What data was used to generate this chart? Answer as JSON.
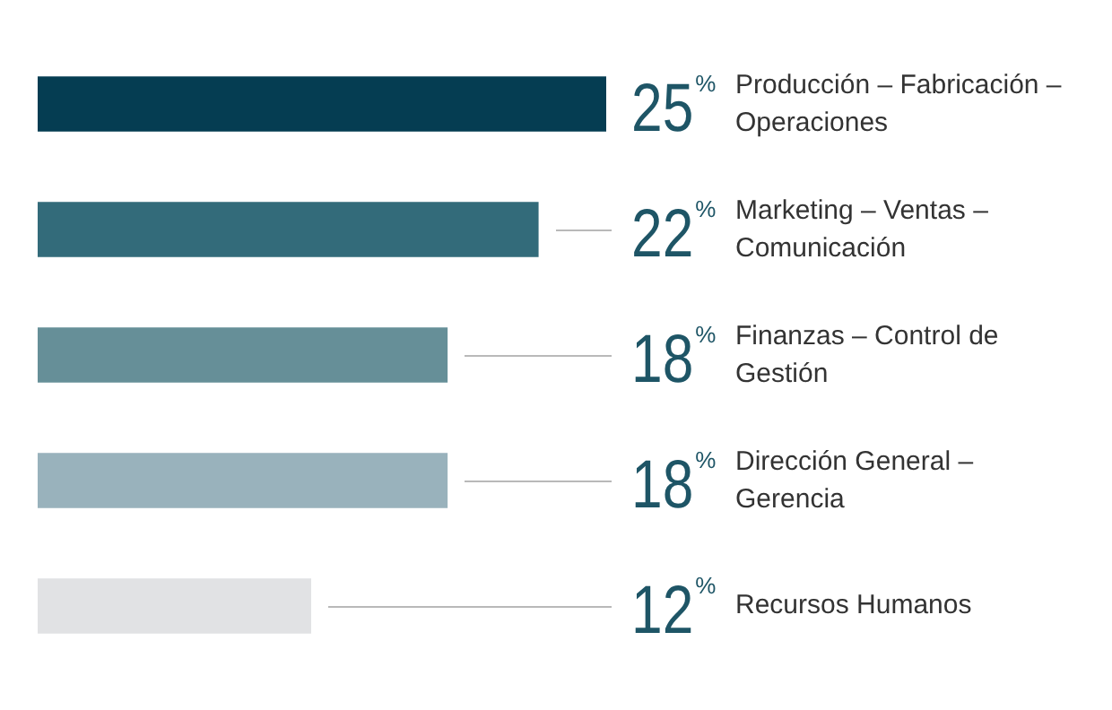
{
  "chart_data": {
    "type": "bar",
    "orientation": "horizontal",
    "categories": [
      "Producción – Fabricación – Operaciones",
      "Marketing – Ventas – Comunicación",
      "Finanzas – Control de Gestión",
      "Dirección General – Gerencia",
      "Recursos Humanos"
    ],
    "values": [
      25,
      22,
      18,
      18,
      12
    ],
    "colors": [
      "#053d52",
      "#336b7a",
      "#668f98",
      "#99b2bc",
      "#e1e2e4"
    ],
    "value_labels": [
      "25%",
      "22%",
      "18%",
      "18%",
      "12%"
    ]
  }
}
